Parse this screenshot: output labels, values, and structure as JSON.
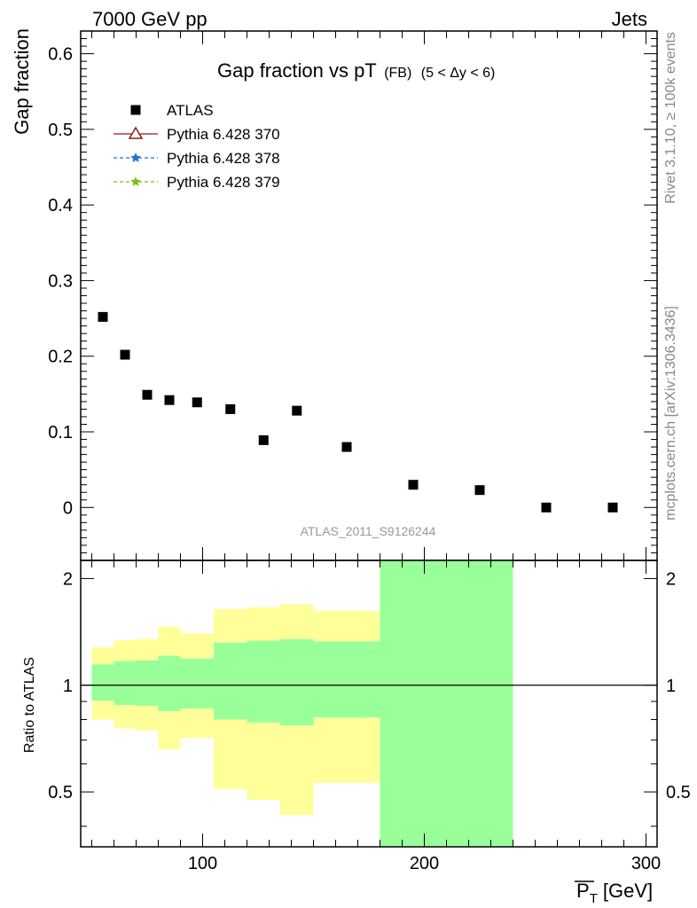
{
  "header": {
    "left": "7000 GeV pp",
    "right": "Jets"
  },
  "side_labels": {
    "top": "Rivet 3.1.10, ≥ 100k events",
    "bottom": "mcplots.cern.ch [arXiv:1306.3436]"
  },
  "chart_data": [
    {
      "type": "scatter",
      "title": "Gap fraction vs pT",
      "title_suffix": "(FB)",
      "title_range": "(5 < Δy < 6)",
      "ylabel": "Gap fraction",
      "xlim": [
        45,
        305
      ],
      "ylim": [
        -0.07,
        0.63
      ],
      "yticks": [
        0,
        0.1,
        0.2,
        0.3,
        0.4,
        0.5,
        0.6
      ],
      "ytick_labels": [
        "0",
        "0.1",
        "0.2",
        "0.3",
        "0.4",
        "0.5",
        "0.6"
      ],
      "watermark": "ATLAS_2011_S9126244",
      "legend_position": "top-left",
      "legend": [
        {
          "name": "ATLAS",
          "marker": "square",
          "color": "#000000"
        },
        {
          "name": "Pythia 6.428 370",
          "marker": "triangle",
          "color": "#8b1a1a"
        },
        {
          "name": "Pythia 6.428 378",
          "marker": "star",
          "color": "#1f6fd8"
        },
        {
          "name": "Pythia 6.428 379",
          "marker": "star",
          "color": "#7cbf1e"
        }
      ],
      "series": [
        {
          "name": "ATLAS",
          "x": [
            55,
            65,
            75,
            85,
            97.5,
            112.5,
            127.5,
            142.5,
            165,
            195,
            225,
            255,
            285
          ],
          "y": [
            0.252,
            0.202,
            0.149,
            0.142,
            0.139,
            0.13,
            0.089,
            0.128,
            0.08,
            0.03,
            0.023,
            0.0,
            0.0
          ]
        }
      ]
    },
    {
      "type": "area",
      "ylabel": "Ratio to ATLAS",
      "xlabel": "P_T [GeV]",
      "xlabel_main": "P",
      "xlabel_sub": "T",
      "xlabel_unit": "[GeV]",
      "xlim": [
        45,
        305
      ],
      "ylim": [
        0.35,
        2.25
      ],
      "xticks": [
        100,
        200,
        300
      ],
      "xtick_labels": [
        "100",
        "200",
        "300"
      ],
      "yticks": [
        0.5,
        1,
        2
      ],
      "ytick_labels": [
        "0.5",
        "1",
        "2"
      ],
      "reference_line": 1,
      "bins": [
        {
          "x0": 50,
          "x1": 60,
          "stat_lo": 0.905,
          "stat_hi": 1.145,
          "tot_lo": 0.8,
          "tot_hi": 1.28
        },
        {
          "x0": 60,
          "x1": 70,
          "stat_lo": 0.88,
          "stat_hi": 1.17,
          "tot_lo": 0.755,
          "tot_hi": 1.34
        },
        {
          "x0": 70,
          "x1": 80,
          "stat_lo": 0.875,
          "stat_hi": 1.175,
          "tot_lo": 0.745,
          "tot_hi": 1.35
        },
        {
          "x0": 80,
          "x1": 90,
          "stat_lo": 0.845,
          "stat_hi": 1.21,
          "tot_lo": 0.66,
          "tot_hi": 1.46
        },
        {
          "x0": 90,
          "x1": 105,
          "stat_lo": 0.86,
          "stat_hi": 1.19,
          "tot_lo": 0.71,
          "tot_hi": 1.4
        },
        {
          "x0": 105,
          "x1": 120,
          "stat_lo": 0.8,
          "stat_hi": 1.32,
          "tot_lo": 0.51,
          "tot_hi": 1.64
        },
        {
          "x0": 120,
          "x1": 135,
          "stat_lo": 0.785,
          "stat_hi": 1.335,
          "tot_lo": 0.475,
          "tot_hi": 1.66
        },
        {
          "x0": 135,
          "x1": 150,
          "stat_lo": 0.77,
          "stat_hi": 1.35,
          "tot_lo": 0.43,
          "tot_hi": 1.69
        },
        {
          "x0": 150,
          "x1": 180,
          "stat_lo": 0.81,
          "stat_hi": 1.33,
          "tot_lo": 0.53,
          "tot_hi": 1.62
        },
        {
          "x0": 180,
          "x1": 240,
          "stat_lo": 0.35,
          "stat_hi": 2.25,
          "tot_lo": 0.35,
          "tot_hi": 2.25
        }
      ]
    }
  ],
  "colors": {
    "stat_band": "#99ff99",
    "total_band": "#ffff99",
    "data_marker": "#000000",
    "watermark": "#999999",
    "side_text": "#888888"
  }
}
